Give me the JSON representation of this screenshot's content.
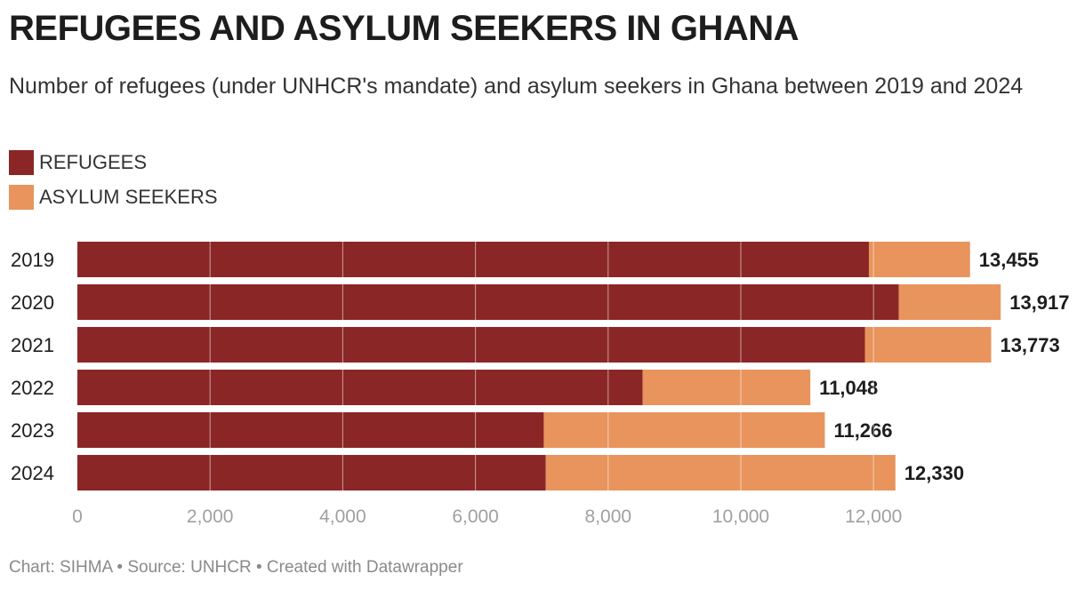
{
  "title": "REFUGEES AND ASYLUM SEEKERS IN GHANA",
  "subtitle": "Number of refugees (under UNHCR's mandate) and asylum seekers in Ghana between 2019 and 2024",
  "footer": "Chart: SIHMA • Source: UNHCR • Created with Datawrapper",
  "colors": {
    "refugees": "#8b2626",
    "asylum_seekers": "#e8945c",
    "gridline": "#ffffff",
    "axis_text": "#a0a0a0",
    "label_text": "#1d1d1d"
  },
  "legend": [
    {
      "label": "REFUGEES",
      "color": "#8b2626"
    },
    {
      "label": "ASYLUM SEEKERS",
      "color": "#e8945c"
    }
  ],
  "chart_data": {
    "type": "bar",
    "orientation": "horizontal",
    "stacked": true,
    "title": "REFUGEES AND ASYLUM SEEKERS IN GHANA",
    "categories": [
      "2019",
      "2020",
      "2021",
      "2022",
      "2023",
      "2024"
    ],
    "series": [
      {
        "name": "REFUGEES",
        "values": [
          11930,
          12380,
          11870,
          8520,
          7030,
          7060
        ]
      },
      {
        "name": "ASYLUM SEEKERS",
        "values": [
          1525,
          1537,
          1903,
          2528,
          4236,
          5270
        ]
      }
    ],
    "totals": [
      "13,455",
      "13,917",
      "13,773",
      "11,048",
      "11,266",
      "12,330"
    ],
    "xlim": [
      0,
      14000
    ],
    "xticks": [
      0,
      2000,
      4000,
      6000,
      8000,
      10000,
      12000
    ],
    "xtick_labels": [
      "0",
      "2,000",
      "4,000",
      "6,000",
      "8,000",
      "10,000",
      "12,000"
    ],
    "grid": true,
    "legend_position": "top-left"
  }
}
